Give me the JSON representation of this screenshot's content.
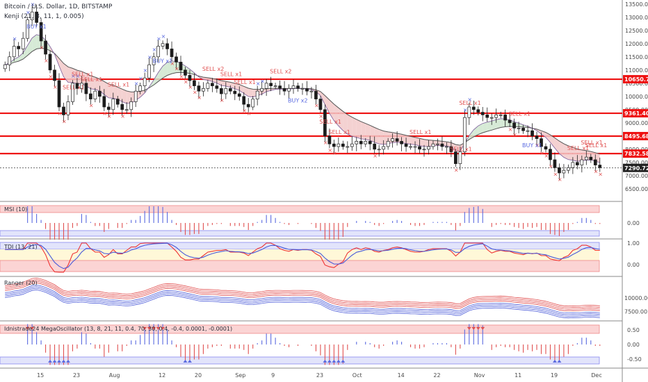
{
  "header": {
    "symbol_line": "Bitcoin / U.S. Dollar, 1D, BITSTAMP",
    "kenji_line": "Kenji (21, 8, 11, 1, 0.005)"
  },
  "colors": {
    "sell": "#e05050",
    "buy": "#5a6ae0",
    "level": "#ee1111",
    "up_candle": "#ffffff",
    "down_candle": "#1c1c1c"
  },
  "x_axis": [
    "15",
    "23",
    "Aug",
    "12",
    "20",
    "Sep",
    "9",
    "23",
    "Oct",
    "14",
    "22",
    "Nov",
    "11",
    "19",
    "Dec"
  ],
  "chart_data": [
    {
      "type": "candlestick",
      "title": "Bitcoin / U.S. Dollar, 1D, BITSTAMP",
      "y_ticks": [
        13500,
        13000,
        12500,
        12000,
        11500,
        11000,
        10500,
        10000,
        9500,
        9000,
        8500,
        8000,
        7500,
        7000,
        6500
      ],
      "ylim": [
        6100,
        13600
      ],
      "close": [
        11200,
        11500,
        11900,
        11800,
        12200,
        12900,
        13200,
        12800,
        12100,
        11600,
        11000,
        10600,
        9600,
        9300,
        9800,
        10500,
        10300,
        10500,
        10100,
        9900,
        10200,
        10000,
        9600,
        9500,
        9900,
        9700,
        9500,
        9500,
        9800,
        10200,
        10400,
        10700,
        11200,
        11500,
        11900,
        12000,
        11800,
        11500,
        11300,
        11000,
        10800,
        10600,
        10400,
        10200,
        10300,
        10500,
        10400,
        10300,
        10100,
        10300,
        10200,
        10100,
        10000,
        9700,
        9600,
        9900,
        10200,
        10300,
        10500,
        10400,
        10400,
        10300,
        10200,
        10300,
        10400,
        10300,
        10300,
        10200,
        10200,
        9900,
        9500,
        8500,
        8200,
        8100,
        8200,
        8100,
        8100,
        8200,
        8300,
        8200,
        8300,
        8200,
        8000,
        8000,
        8100,
        8300,
        8400,
        8300,
        8200,
        8100,
        8100,
        8100,
        8000,
        8000,
        8100,
        8200,
        8200,
        8100,
        8100,
        7900,
        7450,
        7900,
        9200,
        9600,
        9500,
        9400,
        9300,
        9200,
        9200,
        9300,
        9300,
        9100,
        9000,
        8800,
        8800,
        8700,
        8700,
        8500,
        8400,
        8100,
        8000,
        7600,
        7300,
        7100,
        7200,
        7300,
        7500,
        7400,
        7600,
        7700,
        7600,
        7400,
        7300
      ],
      "levels": [
        10650.75,
        9361.4,
        8495.68,
        7832.58
      ],
      "last_price": 7290.72,
      "signals": [
        {
          "label": "SELL x1",
          "kind": "sell"
        },
        {
          "label": "BUY x1",
          "kind": "buy"
        },
        {
          "label": "SELL x1",
          "kind": "sell"
        },
        {
          "label": "SELL x1",
          "kind": "sell"
        },
        {
          "label": "SELL x1",
          "kind": "sell"
        },
        {
          "label": "BUY x1",
          "kind": "buy"
        },
        {
          "label": "SELL x2",
          "kind": "sell"
        },
        {
          "label": "SELL x1",
          "kind": "sell"
        },
        {
          "label": "SELL x1",
          "kind": "sell"
        },
        {
          "label": "SELL x2",
          "kind": "sell"
        },
        {
          "label": "BUY x2",
          "kind": "buy"
        },
        {
          "label": "SELL x1",
          "kind": "sell"
        },
        {
          "label": "SELL x1",
          "kind": "sell"
        },
        {
          "label": "SELL x1",
          "kind": "sell"
        },
        {
          "label": "SELL x1",
          "kind": "sell"
        },
        {
          "label": "SELL x1",
          "kind": "sell"
        },
        {
          "label": "SELL x1",
          "kind": "sell"
        },
        {
          "label": "BUY x1",
          "kind": "buy"
        },
        {
          "label": "SELL x1",
          "kind": "sell"
        },
        {
          "label": "SELL x1",
          "kind": "sell"
        },
        {
          "label": "SELL x1",
          "kind": "sell"
        }
      ]
    },
    {
      "type": "bar",
      "title": "MSI (10)",
      "y_ticks": [
        0.0
      ],
      "ylim": [
        -1,
        1
      ]
    },
    {
      "type": "line",
      "title": "TDI (13, 21)",
      "y_ticks": [
        1.0,
        0.0
      ],
      "ylim": [
        -0.4,
        1.1
      ]
    },
    {
      "type": "line",
      "title": "Ranger (20)",
      "y_ticks": [
        10000.0,
        7500.0
      ],
      "ylim": [
        6000,
        13500
      ]
    },
    {
      "type": "bar",
      "title": "Idnistrade24 MegaOscillator (13, 8, 21, 11, 0.4, 70, 30, 0.4, -0.4, 0.0001, -0.0001)",
      "y_ticks": [
        0.5,
        0.0,
        -0.5
      ],
      "ylim": [
        -0.8,
        0.8
      ]
    }
  ],
  "price_badges": [
    "10650.75",
    "9361.40",
    "8495.68",
    "7832.58",
    "7290.72"
  ]
}
